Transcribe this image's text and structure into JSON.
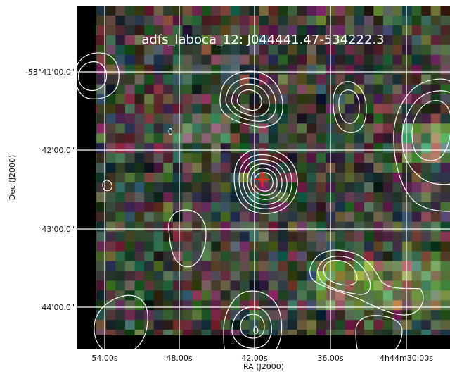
{
  "figure": {
    "title": "adfs_laboca_12: J044441.47-534222.3",
    "x_axis_label": "RA (J2000)",
    "y_axis_label": "Dec (J2000)",
    "ra_ticks": [
      "54.00s",
      "48.00s",
      "42.00s",
      "36.00s",
      "4h44m30.00s"
    ],
    "dec_ticks": [
      "-53°41'00.0\"",
      "42'00.0\"",
      "43'00.0\"",
      "44'00.0\""
    ],
    "colors": {
      "grid": "#ffffff",
      "contour": "#ffffff",
      "marker": "#ff2020",
      "background_band": "#000000"
    }
  }
}
